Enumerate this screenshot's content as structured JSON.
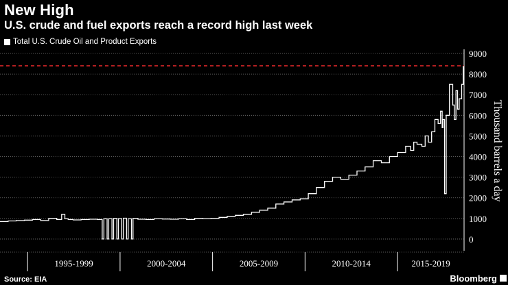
{
  "header": {
    "title": "New High",
    "subtitle": "U.S. crude and fuel exports reach a record high last week"
  },
  "footer": {
    "source": "Source: EIA",
    "brand": "Bloomberg"
  },
  "colors": {
    "background": "#000000",
    "line": "#ffffff",
    "record_line": "#e8292b",
    "grid": "#7a7a7a"
  },
  "chart_data": {
    "type": "line",
    "title": "New High",
    "subtitle": "U.S. crude and fuel exports reach a record high last week",
    "ylabel": "Thousand barrels a day",
    "ylim": [
      -500,
      9200
    ],
    "yticks": [
      0,
      1000,
      2000,
      3000,
      4000,
      5000,
      6000,
      7000,
      8000,
      9000
    ],
    "xlim": [
      1991.0,
      2019.6
    ],
    "x_period_labels": [
      "1995-1999",
      "2000-2004",
      "2005-2009",
      "2010-2014",
      "2015-2019"
    ],
    "x_period_boundaries": [
      1992.7,
      1998.4,
      2004.1,
      2009.8,
      2015.5
    ],
    "grid": true,
    "legend_position": "top-left",
    "reference_line": {
      "y": 8400,
      "style": "dashed",
      "meaning": "record high"
    },
    "series": [
      {
        "name": "Total U.S. Crude Oil and Product Exports",
        "x": [
          1991.0,
          1991.5,
          1992.0,
          1992.5,
          1993.0,
          1993.5,
          1994.0,
          1994.5,
          1994.8,
          1995.0,
          1995.2,
          1995.5,
          1996.0,
          1996.5,
          1997.0,
          1997.3,
          1997.4,
          1997.6,
          1997.7,
          1997.9,
          1998.0,
          1998.2,
          1998.3,
          1998.5,
          1998.6,
          1998.8,
          1998.9,
          1999.1,
          1999.2,
          1999.5,
          2000.0,
          2000.5,
          2001.0,
          2001.5,
          2002.0,
          2002.5,
          2003.0,
          2003.5,
          2004.0,
          2004.5,
          2005.0,
          2005.5,
          2006.0,
          2006.5,
          2007.0,
          2007.5,
          2008.0,
          2008.5,
          2009.0,
          2009.5,
          2010.0,
          2010.5,
          2011.0,
          2011.5,
          2012.0,
          2012.5,
          2013.0,
          2013.5,
          2014.0,
          2014.5,
          2015.0,
          2015.5,
          2016.0,
          2016.3,
          2016.5,
          2016.7,
          2017.0,
          2017.2,
          2017.4,
          2017.6,
          2017.8,
          2018.0,
          2018.15,
          2018.25,
          2018.3,
          2018.4,
          2018.5,
          2018.7,
          2018.9,
          2019.0,
          2019.1,
          2019.2,
          2019.3,
          2019.45,
          2019.55
        ],
        "values": [
          850,
          880,
          900,
          920,
          950,
          900,
          1000,
          950,
          1200,
          980,
          950,
          930,
          950,
          960,
          950,
          0,
          980,
          0,
          990,
          0,
          1000,
          0,
          990,
          0,
          1010,
          0,
          980,
          0,
          1000,
          960,
          950,
          980,
          970,
          960,
          980,
          950,
          1000,
          990,
          1000,
          1050,
          1100,
          1150,
          1200,
          1300,
          1400,
          1500,
          1700,
          1800,
          1900,
          1950,
          2200,
          2500,
          2800,
          3000,
          2900,
          3100,
          3300,
          3500,
          3800,
          3700,
          4000,
          4200,
          4500,
          4300,
          4700,
          4600,
          4500,
          5000,
          4700,
          5200,
          5800,
          5600,
          6200,
          5400,
          5800,
          2200,
          6000,
          7500,
          6500,
          5800,
          7200,
          6300,
          6800,
          7500,
          8400
        ]
      }
    ]
  }
}
